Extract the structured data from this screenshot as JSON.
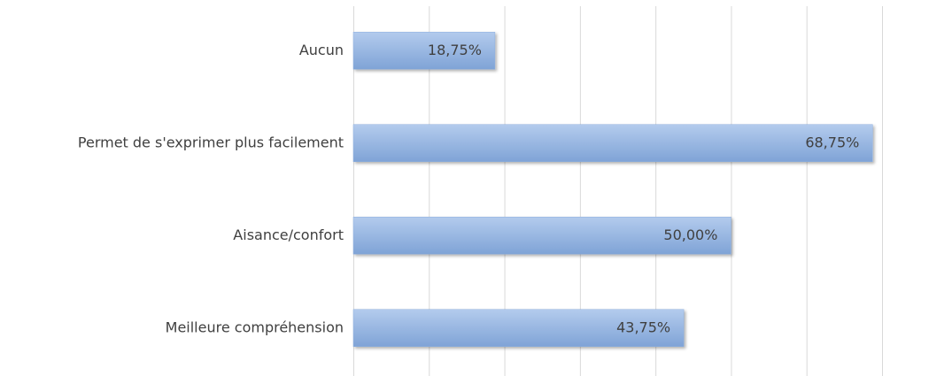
{
  "chart_data": {
    "type": "bar",
    "orientation": "horizontal",
    "categories": [
      "Aucun",
      "Permet de s'exprimer plus facilement",
      "Aisance/confort",
      "Meilleure compréhension"
    ],
    "values": [
      18.75,
      68.75,
      50,
      43.75
    ],
    "value_labels": [
      "18,75%",
      "68,75%",
      "50,00%",
      "43,75%"
    ],
    "color": "#8eb0df",
    "xlim": [
      0,
      70
    ],
    "xticks": [
      0,
      10,
      20,
      30,
      40,
      50,
      60,
      70
    ],
    "grid": true
  }
}
